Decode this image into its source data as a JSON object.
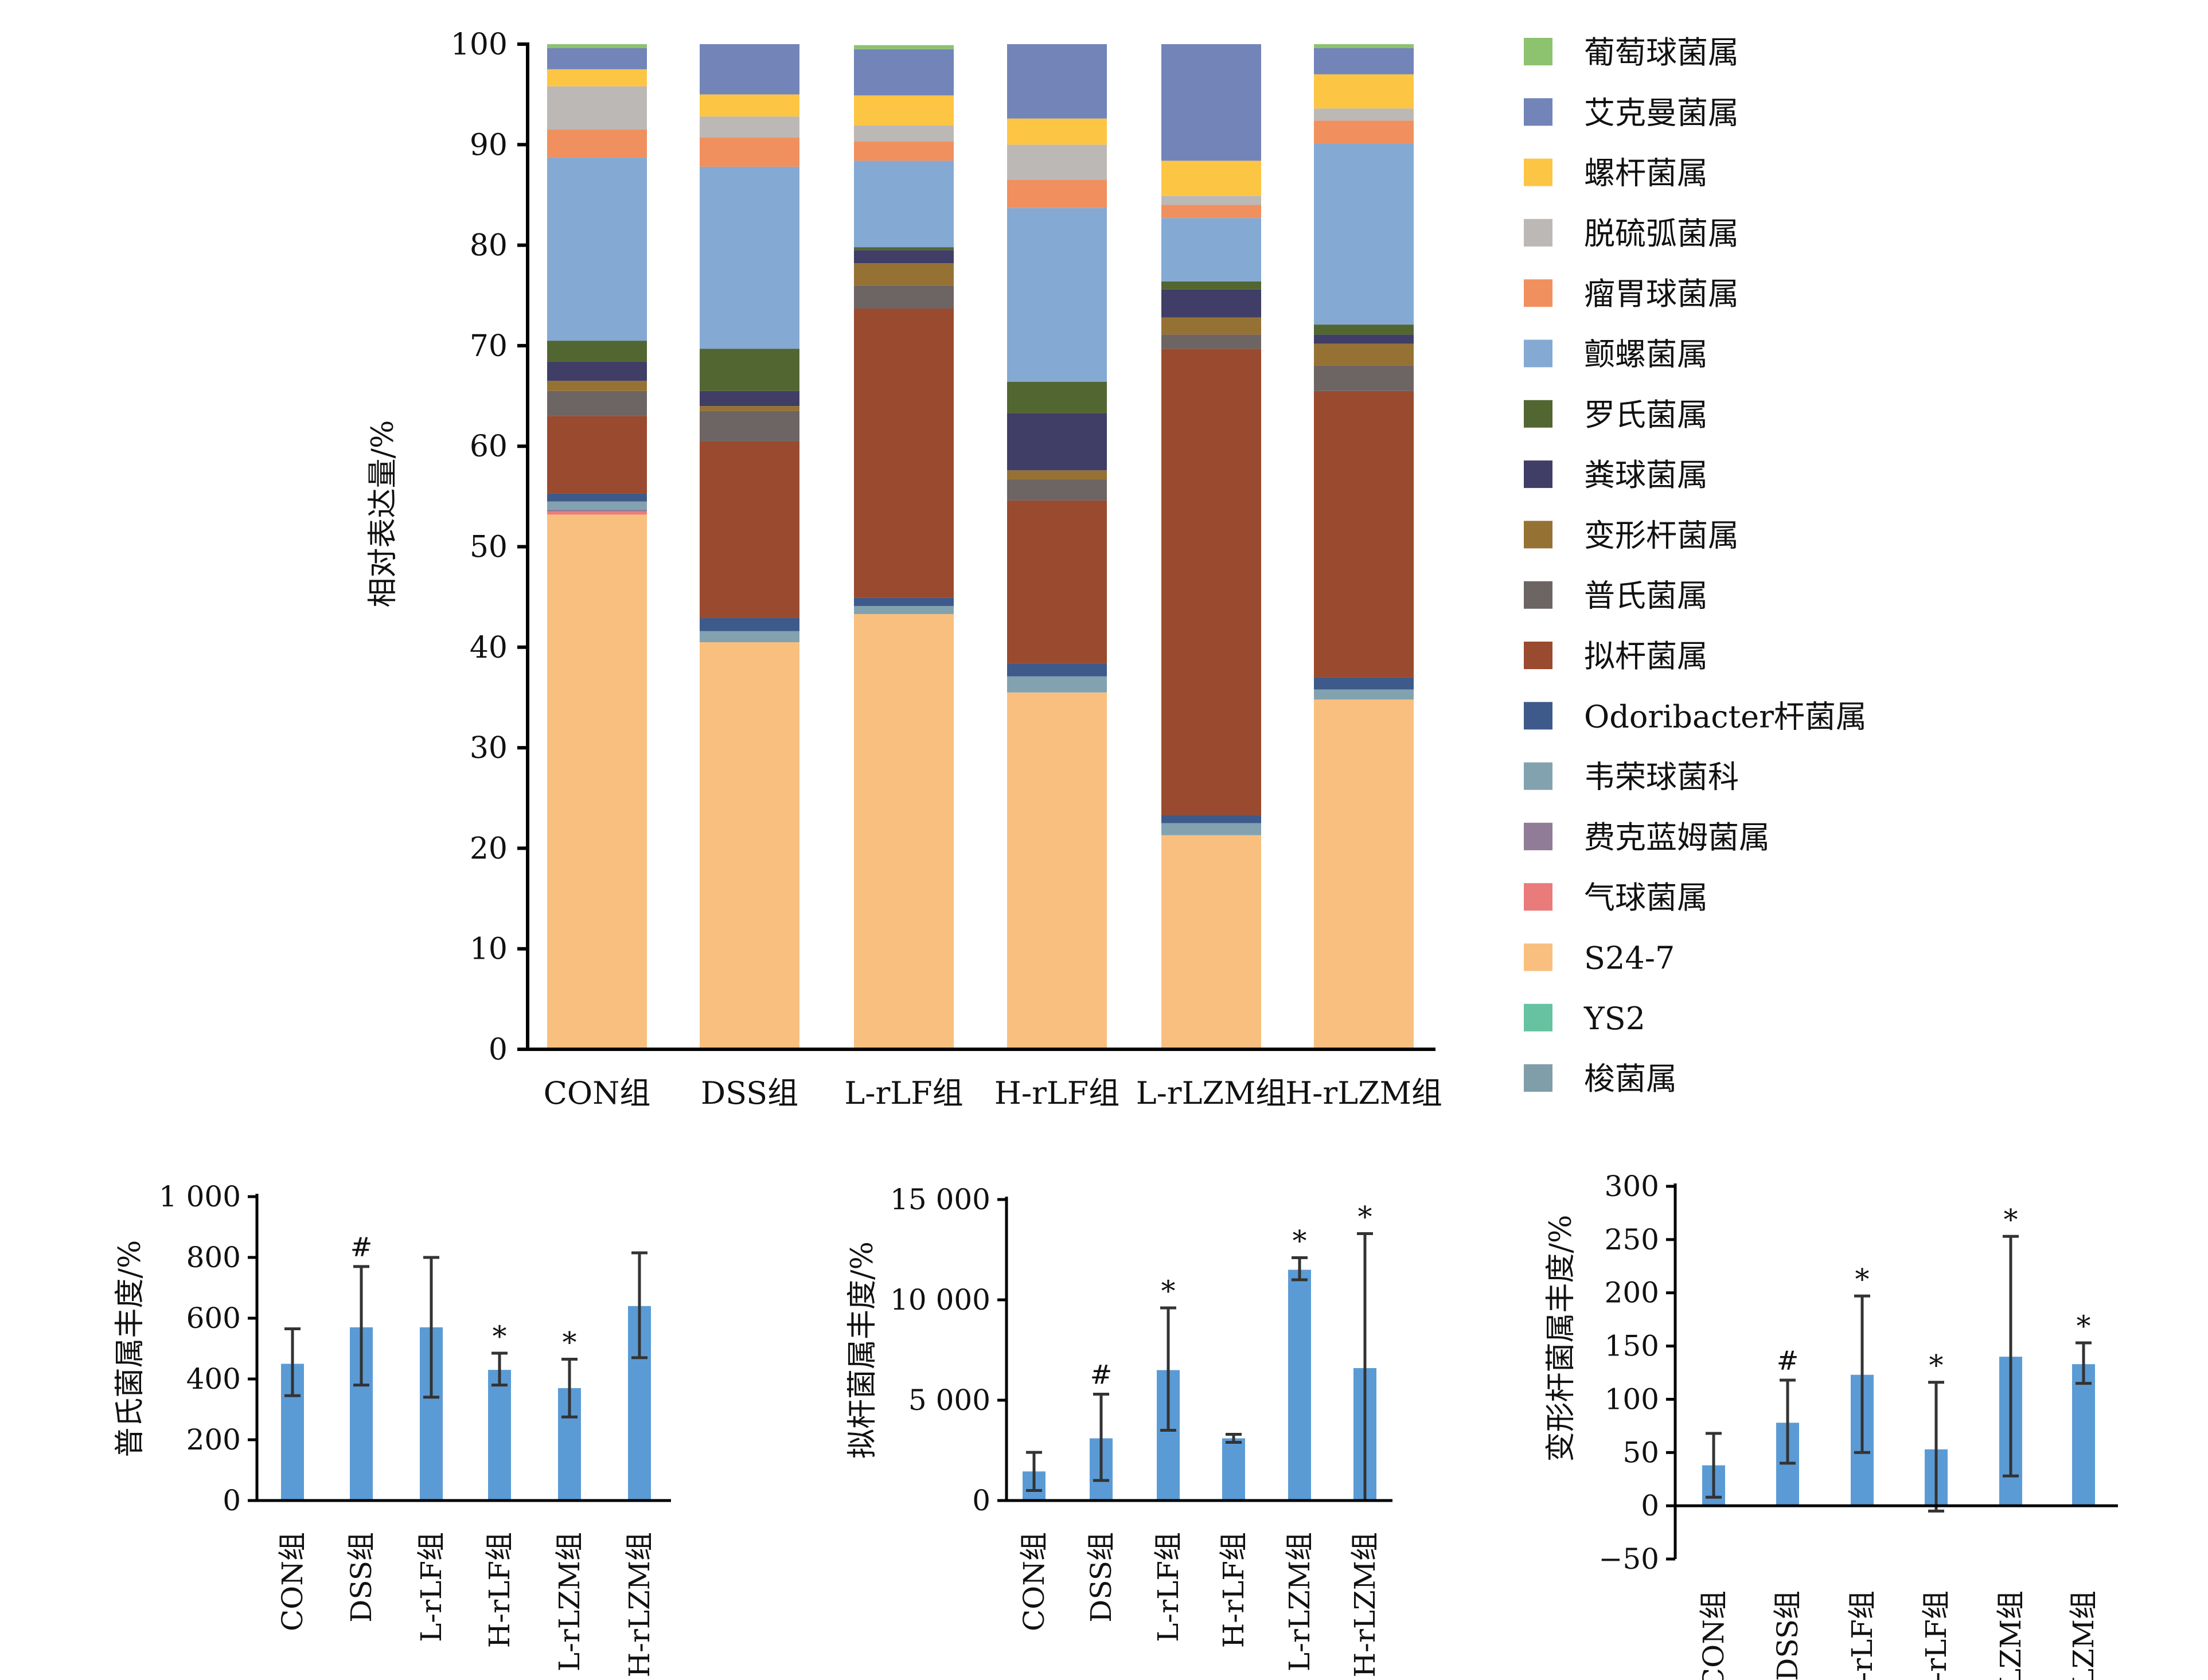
{
  "chart_data": [
    {
      "type": "bar",
      "stacked": true,
      "ylabel": "相对表达量/%",
      "ylim": [
        0,
        100
      ],
      "yticks": [
        "0",
        "10",
        "20",
        "30",
        "40",
        "50",
        "60",
        "70",
        "80",
        "90",
        "100"
      ],
      "categories": [
        "CON组",
        "DSS组",
        "L-rLF组",
        "H-rLF组",
        "L-rLZM组",
        "H-rLZM组"
      ],
      "legend_placement": "right",
      "series": [
        {
          "name": "梭菌属",
          "color": "#7f9eaa",
          "values": [
            0,
            0,
            0,
            0,
            0,
            0
          ]
        },
        {
          "name": "YS2",
          "color": "#66c2a0",
          "values": [
            0,
            0,
            0,
            0,
            0,
            0
          ]
        },
        {
          "name": "S24-7",
          "color": "#f9bf7f",
          "values": [
            53.2,
            40.5,
            43.3,
            35.5,
            21.3,
            34.8
          ]
        },
        {
          "name": "气球菌属",
          "color": "#e97b7b",
          "values": [
            0.3,
            0,
            0,
            0,
            0,
            0
          ]
        },
        {
          "name": "费克蓝姆菌属",
          "color": "#917c97",
          "values": [
            0.2,
            0,
            0,
            0,
            0,
            0
          ]
        },
        {
          "name": "韦荣球菌科",
          "color": "#83a2b0",
          "values": [
            0.8,
            1.1,
            0.8,
            1.6,
            1.2,
            1.0
          ]
        },
        {
          "name": "Odoribacter杆菌属",
          "color": "#3d5a8a",
          "values": [
            0.8,
            1.3,
            0.8,
            1.3,
            0.8,
            1.2
          ]
        },
        {
          "name": "拟杆菌属",
          "color": "#9a4a2e",
          "values": [
            7.7,
            17.6,
            28.8,
            16.2,
            46.4,
            28.5
          ]
        },
        {
          "name": "普氏菌属",
          "color": "#6d6563",
          "values": [
            2.5,
            3.0,
            2.3,
            2.1,
            1.4,
            2.5
          ]
        },
        {
          "name": "变形杆菌属",
          "color": "#957234",
          "values": [
            1.0,
            0.5,
            2.2,
            0.9,
            1.7,
            2.2
          ]
        },
        {
          "name": "粪球菌属",
          "color": "#403e66",
          "values": [
            1.9,
            1.5,
            1.3,
            5.7,
            2.8,
            0.9
          ]
        },
        {
          "name": "罗氏菌属",
          "color": "#526632",
          "values": [
            2.1,
            4.2,
            0.3,
            3.1,
            0.8,
            1.0
          ]
        },
        {
          "name": "颤螺菌属",
          "color": "#84a9d3",
          "values": [
            18.2,
            18.1,
            8.6,
            17.3,
            6.3,
            18.0
          ]
        },
        {
          "name": "瘤胃球菌属",
          "color": "#f0905e",
          "values": [
            2.8,
            2.9,
            1.9,
            2.8,
            1.3,
            2.3
          ]
        },
        {
          "name": "脱硫弧菌属",
          "color": "#bcb8b6",
          "values": [
            4.3,
            2.1,
            1.6,
            3.5,
            0.9,
            1.2
          ]
        },
        {
          "name": "螺杆菌属",
          "color": "#fdc544",
          "values": [
            1.7,
            2.2,
            3.0,
            2.6,
            3.5,
            3.4
          ]
        },
        {
          "name": "艾克曼菌属",
          "color": "#7284b8",
          "values": [
            2.1,
            5.0,
            4.6,
            7.4,
            11.6,
            2.6
          ]
        },
        {
          "name": "葡萄球菌属",
          "color": "#8dc26f",
          "values": [
            0.4,
            0,
            0.4,
            0,
            0,
            0.4
          ]
        }
      ]
    },
    {
      "type": "bar",
      "ylabel": "普氏菌属丰度/%",
      "ylim": [
        0,
        1000
      ],
      "yticks": [
        {
          "v": 0,
          "l": "0"
        },
        {
          "v": 200,
          "l": "200"
        },
        {
          "v": 400,
          "l": "400"
        },
        {
          "v": 600,
          "l": "600"
        },
        {
          "v": 800,
          "l": "800"
        },
        {
          "v": 1000,
          "l": "1 000"
        }
      ],
      "categories": [
        "CON组",
        "DSS组",
        "L-rLF组",
        "H-rLF组",
        "L-rLZM组",
        "H-rLZM组"
      ],
      "values": [
        450,
        570,
        570,
        430,
        370,
        640
      ],
      "err_low": [
        345,
        380,
        340,
        380,
        275,
        470
      ],
      "err_high": [
        565,
        770,
        800,
        485,
        465,
        815
      ],
      "marks": [
        "",
        "#",
        "",
        "*",
        "*",
        ""
      ],
      "color": "#5b9bd5"
    },
    {
      "type": "bar",
      "ylabel": "拟杆菌属丰度/%",
      "ylim": [
        0,
        15000
      ],
      "yticks": [
        {
          "v": 0,
          "l": "0"
        },
        {
          "v": 5000,
          "l": "5 000"
        },
        {
          "v": 10000,
          "l": "10 000"
        },
        {
          "v": 15000,
          "l": "15 000"
        }
      ],
      "categories": [
        "CON组",
        "DSS组",
        "L-rLF组",
        "H-rLF组",
        "L-rLZM组",
        "H-rLZM组"
      ],
      "values": [
        1450,
        3100,
        6500,
        3100,
        11500,
        6600
      ],
      "err_low": [
        500,
        1000,
        3500,
        2900,
        11000,
        0
      ],
      "err_high": [
        2400,
        5300,
        9600,
        3300,
        12100,
        13300
      ],
      "marks": [
        "",
        "#",
        "*",
        "",
        "*",
        "*"
      ],
      "color": "#5b9bd5"
    },
    {
      "type": "bar",
      "ylabel": "变形杆菌属丰度/%",
      "ylim": [
        -50,
        300
      ],
      "yticks": [
        {
          "v": -50,
          "l": "−50"
        },
        {
          "v": 0,
          "l": "0"
        },
        {
          "v": 50,
          "l": "50"
        },
        {
          "v": 100,
          "l": "100"
        },
        {
          "v": 150,
          "l": "150"
        },
        {
          "v": 200,
          "l": "200"
        },
        {
          "v": 250,
          "l": "250"
        },
        {
          "v": 300,
          "l": "300"
        }
      ],
      "categories": [
        "CON组",
        "DSS组",
        "L-rLF组",
        "H-rLF组",
        "L-rLZM组",
        "H-rLZM组"
      ],
      "values": [
        38,
        78,
        123,
        53,
        140,
        133
      ],
      "err_low": [
        8,
        40,
        50,
        -5,
        28,
        115
      ],
      "err_high": [
        68,
        118,
        197,
        116,
        253,
        153
      ],
      "marks": [
        "",
        "#",
        "*",
        "*",
        "*",
        "*"
      ],
      "color": "#5b9bd5"
    }
  ]
}
